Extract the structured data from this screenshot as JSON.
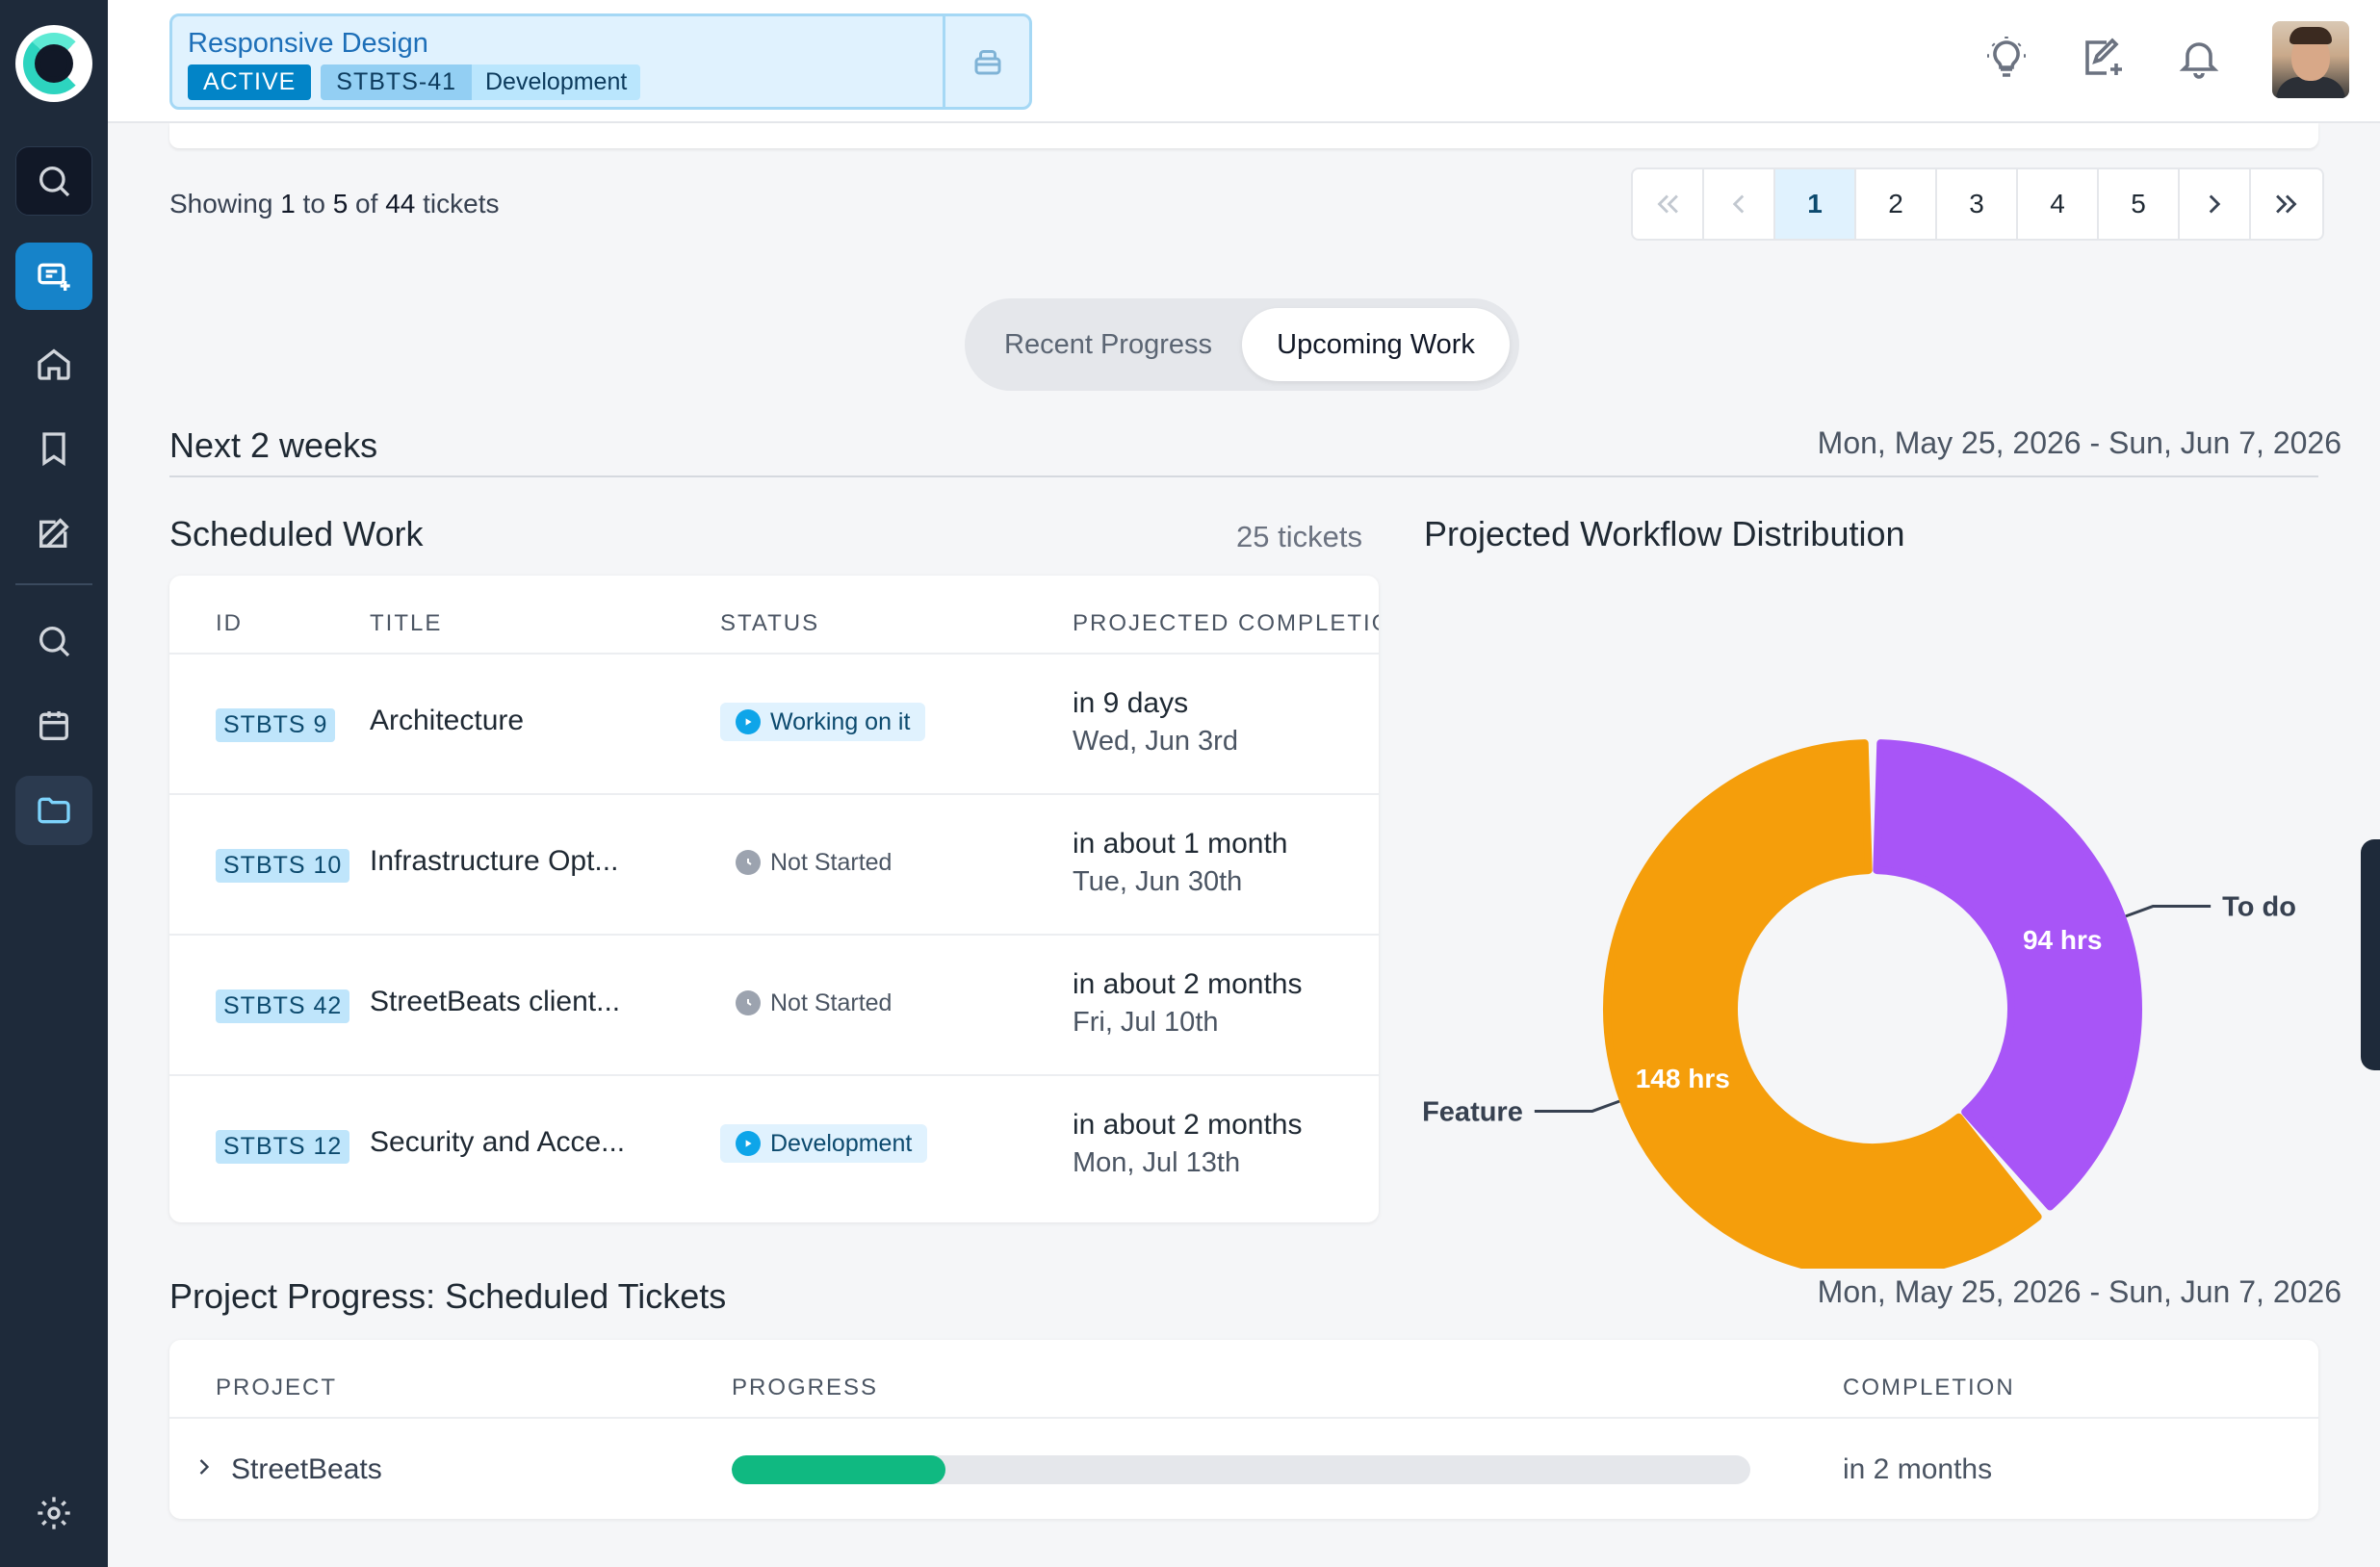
{
  "project_chip": {
    "title": "Responsive Design",
    "status": "ACTIVE",
    "ticket_id": "STBTS-41",
    "ticket_stage": "Development"
  },
  "header_icons": [
    "lightbulb-icon",
    "edit-plus-icon",
    "bell-icon"
  ],
  "summary": {
    "prefix": "Showing",
    "from": "1",
    "to_word": "to",
    "to": "5",
    "of_word": "of",
    "total": "44",
    "suffix": "tickets"
  },
  "pagination": {
    "pages": [
      "1",
      "2",
      "3",
      "4",
      "5"
    ],
    "current": "1"
  },
  "view_toggle": {
    "options": [
      "Recent Progress",
      "Upcoming Work"
    ],
    "selected": "Upcoming Work"
  },
  "section": {
    "title": "Next 2 weeks",
    "date_range": "Mon, May 25, 2026 - Sun, Jun 7, 2026"
  },
  "scheduled_work": {
    "title": "Scheduled Work",
    "count": "25 tickets",
    "columns": [
      "ID",
      "TITLE",
      "STATUS",
      "PROJECTED COMPLETION"
    ],
    "rows": [
      {
        "id": "STBTS 9",
        "title": "Architecture",
        "status": "Working on it",
        "status_kind": "blue",
        "eta": "in 9 days",
        "date": "Wed, Jun 3rd"
      },
      {
        "id": "STBTS 10",
        "title": "Infrastructure Opt...",
        "status": "Not Started",
        "status_kind": "grey",
        "eta": "in about 1 month",
        "date": "Tue, Jun 30th"
      },
      {
        "id": "STBTS 42",
        "title": "StreetBeats client...",
        "status": "Not Started",
        "status_kind": "grey",
        "eta": "in about 2 months",
        "date": "Fri, Jul 10th"
      },
      {
        "id": "STBTS 12",
        "title": "Security and Acce...",
        "status": "Development",
        "status_kind": "blue",
        "eta": "in about 2 months",
        "date": "Mon, Jul 13th"
      }
    ]
  },
  "distribution": {
    "title": "Projected Workflow Distribution",
    "slices": [
      {
        "label": "To do",
        "value": 94,
        "value_label": "94 hrs",
        "color": "#a855f7"
      },
      {
        "label": "Feature",
        "value": 148,
        "value_label": "148 hrs",
        "color": "#f59e0b"
      }
    ]
  },
  "project_progress": {
    "title": "Project Progress: Scheduled Tickets",
    "date_range": "Mon, May 25, 2026 - Sun, Jun 7, 2026",
    "columns": [
      "PROJECT",
      "PROGRESS",
      "COMPLETION"
    ],
    "rows": [
      {
        "project": "StreetBeats",
        "progress": 0.21,
        "completion": "in 2 months"
      }
    ]
  },
  "colors": {
    "sidebar_bg": "#1e2a3a",
    "accent": "#0284c7",
    "progress_fill": "#10b981"
  }
}
